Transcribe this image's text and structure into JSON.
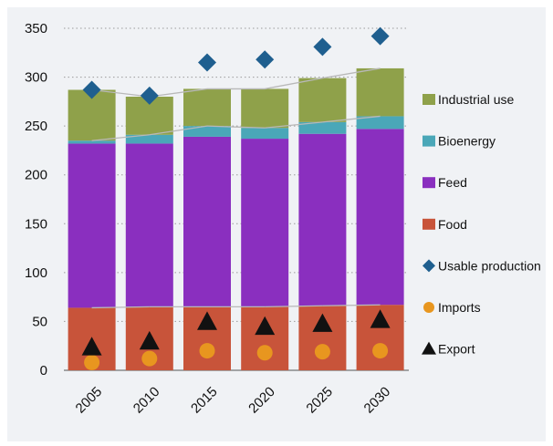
{
  "colors": {
    "food": "#c8543a",
    "feed": "#8a2fbf",
    "bioenergy": "#4aa7b8",
    "industrial": "#8fa14a",
    "production": "#1f5f8f",
    "imports": "#e8961f",
    "export": "#111111",
    "connector": "#b8b8b8",
    "grid": "#9a9a9a"
  },
  "chart_data": {
    "type": "bar",
    "stacked": true,
    "categories": [
      "2005",
      "2010",
      "2015",
      "2020",
      "2025",
      "2030"
    ],
    "ylim": [
      0,
      350
    ],
    "yticks": [
      "0",
      "50",
      "100",
      "150",
      "200",
      "250",
      "300",
      "350"
    ],
    "grid": "horizontal dotted",
    "legend_position": "right",
    "series": [
      {
        "name": "Food",
        "kind": "bar",
        "color": "#c8543a",
        "values": [
          64,
          65,
          65,
          65,
          66,
          67
        ]
      },
      {
        "name": "Feed",
        "kind": "bar",
        "color": "#8a2fbf",
        "values": [
          168,
          167,
          174,
          172,
          176,
          180
        ]
      },
      {
        "name": "Bioenergy",
        "kind": "bar",
        "color": "#4aa7b8",
        "values": [
          3,
          9,
          11,
          11,
          12,
          13
        ]
      },
      {
        "name": "Industrial use",
        "kind": "bar",
        "color": "#8fa14a",
        "values": [
          52,
          39,
          38,
          40,
          45,
          49
        ]
      },
      {
        "name": "Usable production",
        "kind": "marker",
        "marker": "diamond",
        "color": "#1f5f8f",
        "values": [
          287,
          281,
          315,
          318,
          331,
          342
        ]
      },
      {
        "name": "Imports",
        "kind": "marker",
        "marker": "circle",
        "color": "#e8961f",
        "values": [
          8,
          12,
          20,
          18,
          19,
          20
        ]
      },
      {
        "name": "Export",
        "kind": "marker",
        "marker": "triangle",
        "color": "#111111",
        "values": [
          24,
          30,
          50,
          45,
          48,
          52
        ]
      }
    ],
    "legend": [
      "Industrial use",
      "Bioenergy",
      "Feed",
      "Food",
      "Usable production",
      "Imports",
      "Export"
    ]
  }
}
